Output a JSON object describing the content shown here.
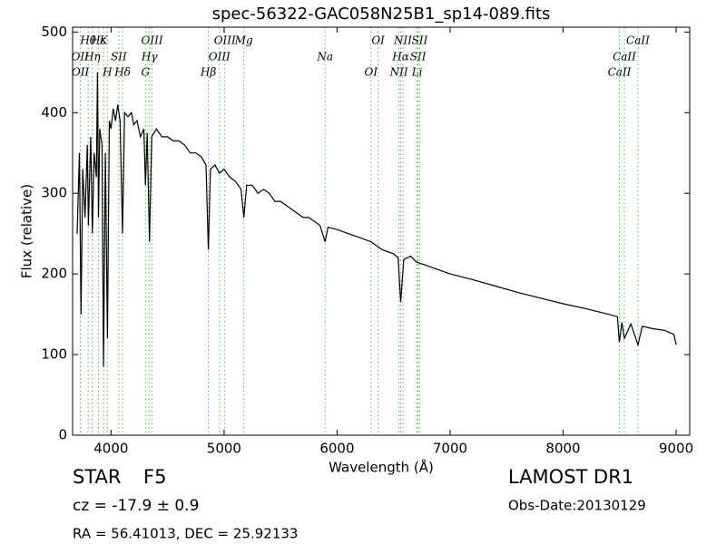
{
  "chart_data": {
    "type": "line",
    "title": "spec-56322-GAC058N25B1_sp14-089.fits",
    "x_label": "Wavelength (Å)",
    "y_label": "Flux (relative)",
    "xlim": [
      3660,
      9120
    ],
    "ylim": [
      0,
      506
    ],
    "xticks": [
      4000,
      5000,
      6000,
      7000,
      8000,
      9000
    ],
    "yticks": [
      0,
      100,
      200,
      300,
      400,
      500
    ],
    "color": "#000000",
    "line_color": "#55bb55",
    "x": [
      3700,
      3720,
      3735,
      3750,
      3770,
      3790,
      3800,
      3820,
      3835,
      3850,
      3870,
      3880,
      3889,
      3900,
      3920,
      3934,
      3950,
      3968,
      3985,
      4000,
      4020,
      4040,
      4060,
      4080,
      4102,
      4120,
      4150,
      4180,
      4200,
      4230,
      4260,
      4290,
      4305,
      4320,
      4340,
      4360,
      4400,
      4450,
      4500,
      4550,
      4600,
      4650,
      4700,
      4750,
      4800,
      4840,
      4861,
      4880,
      4920,
      4960,
      5000,
      5050,
      5100,
      5150,
      5175,
      5200,
      5250,
      5300,
      5350,
      5400,
      5450,
      5500,
      5550,
      5600,
      5650,
      5700,
      5750,
      5800,
      5850,
      5894,
      5920,
      6000,
      6100,
      6200,
      6300,
      6400,
      6500,
      6540,
      6563,
      6590,
      6650,
      6700,
      6800,
      6900,
      7000,
      7200,
      7400,
      7600,
      7800,
      8000,
      8200,
      8400,
      8480,
      8498,
      8520,
      8542,
      8600,
      8662,
      8700,
      8800,
      8900,
      8980,
      9000
    ],
    "values": [
      250,
      350,
      150,
      330,
      270,
      360,
      260,
      370,
      250,
      350,
      320,
      450,
      270,
      380,
      360,
      85,
      350,
      120,
      390,
      380,
      405,
      390,
      410,
      390,
      250,
      400,
      395,
      400,
      385,
      390,
      370,
      380,
      310,
      375,
      240,
      370,
      380,
      370,
      370,
      365,
      365,
      360,
      350,
      350,
      345,
      335,
      230,
      330,
      335,
      325,
      330,
      320,
      315,
      305,
      270,
      310,
      310,
      300,
      305,
      300,
      290,
      290,
      285,
      280,
      275,
      270,
      270,
      265,
      260,
      240,
      258,
      255,
      250,
      245,
      240,
      230,
      225,
      220,
      165,
      218,
      222,
      215,
      210,
      205,
      200,
      193,
      185,
      177,
      170,
      163,
      157,
      150,
      147,
      115,
      140,
      120,
      138,
      112,
      135,
      132,
      130,
      125,
      112
    ],
    "lines": [
      {
        "label": "Hθ",
        "wavelength": 3798
      },
      {
        "label": "OII",
        "wavelength": 3727
      },
      {
        "label": "OII",
        "wavelength": 3729
      },
      {
        "label": "K",
        "wavelength": 3934
      },
      {
        "label": "Hη",
        "wavelength": 3835
      },
      {
        "label": "H",
        "wavelength": 3968
      },
      {
        "label": "Hε",
        "wavelength": 3889
      },
      {
        "label": "SII",
        "wavelength": 4069
      },
      {
        "label": "Hδ",
        "wavelength": 4102
      },
      {
        "label": "OIII",
        "wavelength": 4363
      },
      {
        "label": "Hγ",
        "wavelength": 4340
      },
      {
        "label": "G",
        "wavelength": 4305
      },
      {
        "label": "OIII",
        "wavelength": 5007
      },
      {
        "label": "OIII",
        "wavelength": 4959
      },
      {
        "label": "Hβ",
        "wavelength": 4861
      },
      {
        "label": "Mg",
        "wavelength": 5175
      },
      {
        "label": "Na",
        "wavelength": 5894
      },
      {
        "label": "OI",
        "wavelength": 6300
      },
      {
        "label": "OI",
        "wavelength": 6363
      },
      {
        "label": "Hα",
        "wavelength": 6563
      },
      {
        "label": "NII",
        "wavelength": 6548
      },
      {
        "label": "NII",
        "wavelength": 6583
      },
      {
        "label": "SII",
        "wavelength": 6716
      },
      {
        "label": "Li",
        "wavelength": 6708
      },
      {
        "label": "SII",
        "wavelength": 6731
      },
      {
        "label": "CaII",
        "wavelength": 8542
      },
      {
        "label": "CaII",
        "wavelength": 8498
      },
      {
        "label": "CaII",
        "wavelength": 8662
      }
    ],
    "object_class": "STAR",
    "subclass": "F5",
    "redshift": "cz = -17.9 ± 0.9",
    "coordinates": "RA = 56.41013, DEC = 25.92133",
    "survey": "LAMOST DR1",
    "obs_date": "Obs-Date:20130129"
  }
}
